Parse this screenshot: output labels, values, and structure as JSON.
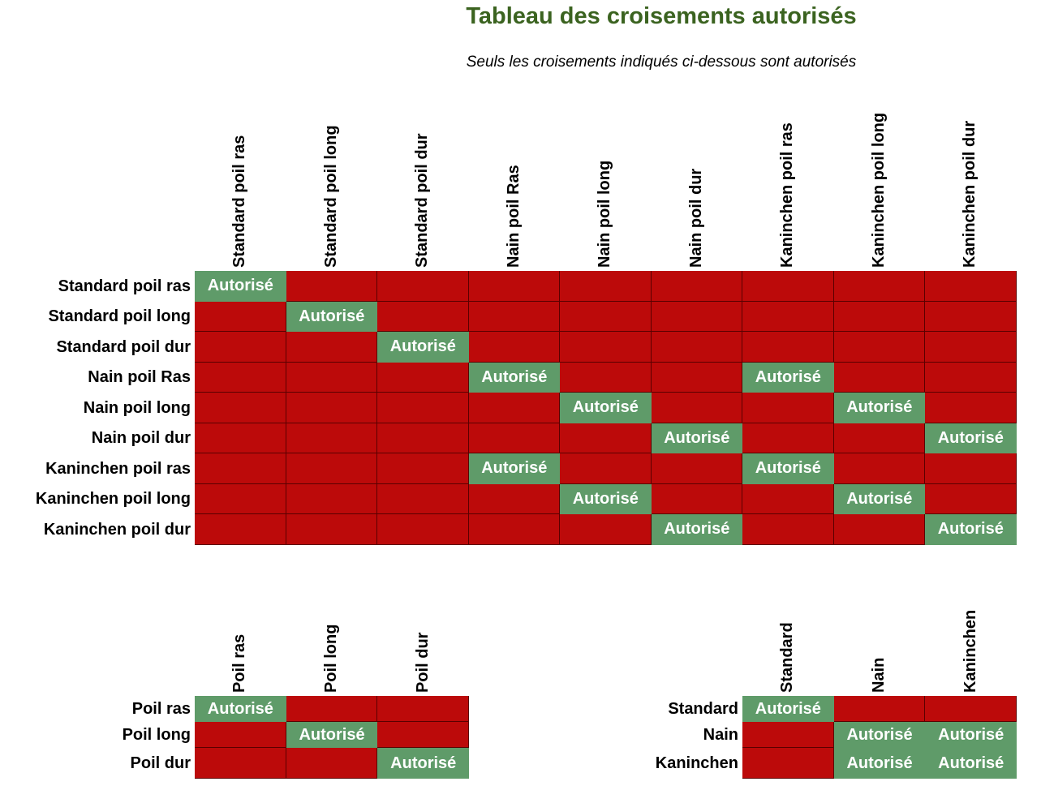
{
  "title": "Tableau des croisements autorisés",
  "subtitle": "Seuls les croisements indiqués ci-dessous sont autorisés",
  "tables": [
    {
      "columns": [
        "Standard poil ras",
        "Standard poil long",
        "Standard poil dur",
        "Nain poil Ras",
        "Nain poil long",
        "Nain poil dur",
        "Kaninchen poil ras",
        "Kaninchen poil long",
        "Kaninchen poil dur"
      ],
      "rows": [
        {
          "label": "Standard poil ras",
          "cells": [
            "Autorisé",
            null,
            null,
            null,
            null,
            null,
            null,
            null,
            null
          ]
        },
        {
          "label": "Standard poil long",
          "cells": [
            null,
            "Autorisé",
            null,
            null,
            null,
            null,
            null,
            null,
            null
          ]
        },
        {
          "label": "Standard poil dur",
          "cells": [
            null,
            null,
            "Autorisé",
            null,
            null,
            null,
            null,
            null,
            null
          ]
        },
        {
          "label": "Nain poil Ras",
          "cells": [
            null,
            null,
            null,
            "Autorisé",
            null,
            null,
            "Autorisé",
            null,
            null
          ]
        },
        {
          "label": "Nain poil long",
          "cells": [
            null,
            null,
            null,
            null,
            "Autorisé",
            null,
            null,
            "Autorisé",
            null
          ]
        },
        {
          "label": "Nain poil dur",
          "cells": [
            null,
            null,
            null,
            null,
            null,
            "Autorisé",
            null,
            null,
            "Autorisé"
          ]
        },
        {
          "label": "Kaninchen poil ras",
          "cells": [
            null,
            null,
            null,
            "Autorisé",
            null,
            null,
            "Autorisé",
            null,
            null
          ]
        },
        {
          "label": "Kaninchen poil long",
          "cells": [
            null,
            null,
            null,
            null,
            "Autorisé",
            null,
            null,
            "Autorisé",
            null
          ]
        },
        {
          "label": "Kaninchen poil dur",
          "cells": [
            null,
            null,
            null,
            null,
            null,
            "Autorisé",
            null,
            null,
            "Autorisé"
          ]
        }
      ]
    },
    {
      "columns": [
        "Poil ras",
        "Poil long",
        "Poil dur"
      ],
      "rows": [
        {
          "label": "Poil ras",
          "cells": [
            "Autorisé",
            null,
            null
          ]
        },
        {
          "label": "Poil long",
          "cells": [
            null,
            "Autorisé",
            null
          ]
        },
        {
          "label": "Poil dur",
          "cells": [
            null,
            null,
            "Autorisé"
          ]
        }
      ]
    },
    {
      "columns": [
        "Standard",
        "Nain",
        "Kaninchen"
      ],
      "rows": [
        {
          "label": "Standard",
          "cells": [
            "Autorisé",
            null,
            null
          ]
        },
        {
          "label": "Nain",
          "cells": [
            null,
            "Autorisé",
            "Autorisé"
          ]
        },
        {
          "label": "Kaninchen",
          "cells": [
            null,
            "Autorisé",
            "Autorisé"
          ]
        }
      ]
    }
  ]
}
